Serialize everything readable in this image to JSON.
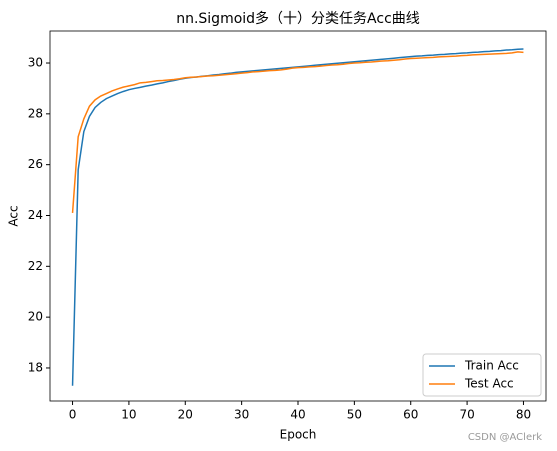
{
  "chart_data": {
    "type": "line",
    "title": "nn.Sigmoid多（十）分类任务Acc曲线",
    "x_label": "Epoch",
    "y_label": "Acc",
    "x": [
      0,
      1,
      2,
      3,
      4,
      5,
      6,
      7,
      8,
      9,
      10,
      11,
      12,
      13,
      14,
      15,
      16,
      17,
      18,
      19,
      20,
      21,
      22,
      23,
      24,
      25,
      26,
      27,
      28,
      29,
      30,
      31,
      32,
      33,
      34,
      35,
      36,
      37,
      38,
      39,
      40,
      41,
      42,
      43,
      44,
      45,
      46,
      47,
      48,
      49,
      50,
      51,
      52,
      53,
      54,
      55,
      56,
      57,
      58,
      59,
      60,
      61,
      62,
      63,
      64,
      65,
      66,
      67,
      68,
      69,
      70,
      71,
      72,
      73,
      74,
      75,
      76,
      77,
      78,
      79,
      80
    ],
    "series": [
      {
        "name": "Train Acc",
        "color": "#1f77b4",
        "values": [
          17.3,
          25.8,
          27.3,
          27.9,
          28.25,
          28.45,
          28.6,
          28.7,
          28.8,
          28.88,
          28.95,
          29.0,
          29.04,
          29.09,
          29.13,
          29.18,
          29.22,
          29.27,
          29.31,
          29.36,
          29.4,
          29.43,
          29.45,
          29.48,
          29.5,
          29.53,
          29.55,
          29.58,
          29.6,
          29.63,
          29.65,
          29.67,
          29.69,
          29.71,
          29.73,
          29.75,
          29.77,
          29.79,
          29.81,
          29.83,
          29.85,
          29.87,
          29.89,
          29.91,
          29.93,
          29.95,
          29.97,
          29.99,
          30.01,
          30.03,
          30.05,
          30.07,
          30.09,
          30.11,
          30.13,
          30.15,
          30.17,
          30.19,
          30.21,
          30.23,
          30.25,
          30.27,
          30.28,
          30.3,
          30.31,
          30.33,
          30.34,
          30.36,
          30.37,
          30.39,
          30.4,
          30.42,
          30.43,
          30.45,
          30.46,
          30.48,
          30.49,
          30.51,
          30.52,
          30.54,
          30.55
        ]
      },
      {
        "name": "Test Acc",
        "color": "#ff7f0e",
        "values": [
          24.1,
          27.1,
          27.8,
          28.3,
          28.55,
          28.7,
          28.8,
          28.9,
          28.98,
          29.05,
          29.1,
          29.15,
          29.22,
          29.24,
          29.27,
          29.3,
          29.31,
          29.33,
          29.35,
          29.38,
          29.42,
          29.44,
          29.45,
          29.47,
          29.49,
          29.5,
          29.52,
          29.54,
          29.56,
          29.58,
          29.6,
          29.62,
          29.65,
          29.66,
          29.68,
          29.7,
          29.71,
          29.73,
          29.76,
          29.8,
          29.82,
          29.83,
          29.85,
          29.86,
          29.88,
          29.9,
          29.92,
          29.93,
          29.95,
          29.98,
          30.0,
          30.01,
          30.03,
          30.04,
          30.06,
          30.08,
          30.09,
          30.11,
          30.13,
          30.16,
          30.18,
          30.19,
          30.2,
          30.21,
          30.22,
          30.24,
          30.25,
          30.26,
          30.27,
          30.29,
          30.3,
          30.32,
          30.33,
          30.34,
          30.35,
          30.36,
          30.37,
          30.38,
          30.4,
          30.44,
          30.42
        ]
      }
    ],
    "xlim": [
      -4,
      84
    ],
    "ylim": [
      16.7,
      31.26
    ],
    "xticks": [
      0,
      10,
      20,
      30,
      40,
      50,
      60,
      70,
      80
    ],
    "yticks": [
      18,
      20,
      22,
      24,
      26,
      28,
      30
    ],
    "legend": "lower right",
    "watermark": "CSDN @AClerk"
  }
}
